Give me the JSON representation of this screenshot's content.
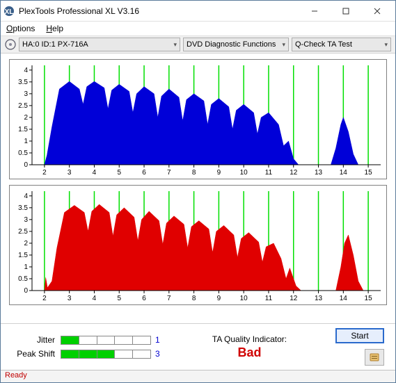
{
  "window": {
    "title": "PlexTools Professional XL V3.16"
  },
  "menu": {
    "options": "Options",
    "help": "Help"
  },
  "toolbar": {
    "drive": "HA:0 ID:1   PX-716A",
    "func": "DVD Diagnostic Functions",
    "test": "Q-Check TA Test"
  },
  "charts": {
    "axis": {
      "x_ticks": [
        2,
        3,
        4,
        5,
        6,
        7,
        8,
        9,
        10,
        11,
        12,
        13,
        14,
        15
      ],
      "y_ticks": [
        0,
        0.5,
        1,
        1.5,
        2,
        2.5,
        3,
        3.5,
        4
      ],
      "xlim": [
        1.5,
        15.5
      ],
      "ylim": [
        0,
        4.2
      ],
      "grid_color": "#00e000",
      "tick_color": "#000000",
      "tick_fontsize": 10
    },
    "top": {
      "fill_color": "#0000d8",
      "points": [
        [
          2.0,
          0
        ],
        [
          2.1,
          0.4
        ],
        [
          2.3,
          1.6
        ],
        [
          2.6,
          3.2
        ],
        [
          3.0,
          3.52
        ],
        [
          3.4,
          3.2
        ],
        [
          3.55,
          2.55
        ],
        [
          3.7,
          3.3
        ],
        [
          4.0,
          3.52
        ],
        [
          4.4,
          3.25
        ],
        [
          4.55,
          2.36
        ],
        [
          4.7,
          3.15
        ],
        [
          5.0,
          3.4
        ],
        [
          5.4,
          3.1
        ],
        [
          5.55,
          2.2
        ],
        [
          5.7,
          3.0
        ],
        [
          6.0,
          3.3
        ],
        [
          6.4,
          3.0
        ],
        [
          6.55,
          2.0
        ],
        [
          6.7,
          2.9
        ],
        [
          7.0,
          3.2
        ],
        [
          7.4,
          2.85
        ],
        [
          7.55,
          1.85
        ],
        [
          7.7,
          2.75
        ],
        [
          8.0,
          3.0
        ],
        [
          8.4,
          2.7
        ],
        [
          8.55,
          1.7
        ],
        [
          8.7,
          2.55
        ],
        [
          9.0,
          2.8
        ],
        [
          9.4,
          2.45
        ],
        [
          9.55,
          1.5
        ],
        [
          9.7,
          2.3
        ],
        [
          10.0,
          2.55
        ],
        [
          10.4,
          2.2
        ],
        [
          10.55,
          1.3
        ],
        [
          10.7,
          2.0
        ],
        [
          11.0,
          2.2
        ],
        [
          11.4,
          1.7
        ],
        [
          11.6,
          0.8
        ],
        [
          11.8,
          1.0
        ],
        [
          12.0,
          0.25
        ],
        [
          12.2,
          0
        ],
        [
          13.5,
          0
        ],
        [
          13.7,
          0.7
        ],
        [
          13.9,
          1.7
        ],
        [
          14.0,
          2.0
        ],
        [
          14.2,
          1.4
        ],
        [
          14.4,
          0.45
        ],
        [
          14.6,
          0
        ]
      ]
    },
    "bottom": {
      "fill_color": "#e00000",
      "points": [
        [
          2.0,
          0
        ],
        [
          2.05,
          0.55
        ],
        [
          2.12,
          0.12
        ],
        [
          2.3,
          0.4
        ],
        [
          2.5,
          1.8
        ],
        [
          2.8,
          3.3
        ],
        [
          3.2,
          3.6
        ],
        [
          3.6,
          3.3
        ],
        [
          3.75,
          2.5
        ],
        [
          3.9,
          3.35
        ],
        [
          4.2,
          3.64
        ],
        [
          4.6,
          3.3
        ],
        [
          4.75,
          2.3
        ],
        [
          4.9,
          3.2
        ],
        [
          5.2,
          3.5
        ],
        [
          5.6,
          3.1
        ],
        [
          5.75,
          2.1
        ],
        [
          5.9,
          3.0
        ],
        [
          6.2,
          3.35
        ],
        [
          6.6,
          2.95
        ],
        [
          6.75,
          1.95
        ],
        [
          6.9,
          2.85
        ],
        [
          7.2,
          3.15
        ],
        [
          7.6,
          2.8
        ],
        [
          7.75,
          1.8
        ],
        [
          7.9,
          2.7
        ],
        [
          8.2,
          2.95
        ],
        [
          8.6,
          2.6
        ],
        [
          8.75,
          1.6
        ],
        [
          8.9,
          2.5
        ],
        [
          9.2,
          2.75
        ],
        [
          9.6,
          2.35
        ],
        [
          9.75,
          1.4
        ],
        [
          9.9,
          2.2
        ],
        [
          10.2,
          2.45
        ],
        [
          10.6,
          2.05
        ],
        [
          10.75,
          1.2
        ],
        [
          10.9,
          1.85
        ],
        [
          11.2,
          2.0
        ],
        [
          11.5,
          1.35
        ],
        [
          11.7,
          0.5
        ],
        [
          11.85,
          0.95
        ],
        [
          12.1,
          0.2
        ],
        [
          12.3,
          0
        ],
        [
          13.7,
          0
        ],
        [
          13.9,
          1.0
        ],
        [
          14.05,
          2.0
        ],
        [
          14.2,
          2.35
        ],
        [
          14.4,
          1.5
        ],
        [
          14.6,
          0.4
        ],
        [
          14.8,
          0
        ]
      ]
    }
  },
  "metrics": {
    "jitter": {
      "label": "Jitter",
      "value": 1,
      "segments": 5,
      "filled": 1,
      "val_color": "#0000d0"
    },
    "peakshift": {
      "label": "Peak Shift",
      "value": 3,
      "segments": 5,
      "filled": 3,
      "val_color": "#0000d0"
    },
    "meter_on_color": "#00d000"
  },
  "quality": {
    "label": "TA Quality Indicator:",
    "value": "Bad",
    "value_color": "#d00000"
  },
  "buttons": {
    "start": "Start"
  },
  "status": {
    "text": "Ready",
    "color": "#c00000"
  }
}
